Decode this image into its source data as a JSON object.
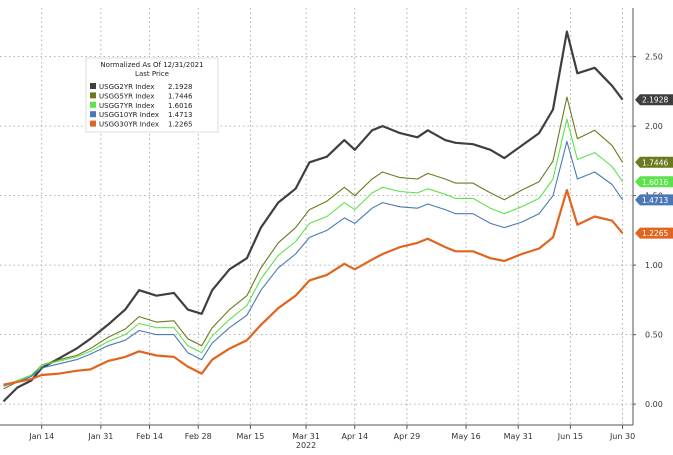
{
  "chart_data": {
    "type": "line",
    "legend": {
      "title_line1": "Normalized As Of 12/31/2021",
      "title_line2": "Last Price",
      "placement": "top-left"
    },
    "x_tick_labels": [
      "Jan 14",
      "Jan 31",
      "Feb 14",
      "Feb 28",
      "Mar 15",
      "Mar 31",
      "Apr 14",
      "Apr 29",
      "May 16",
      "May 31",
      "Jun 15",
      "Jun 30"
    ],
    "x_year_label": "2022",
    "y_tick_labels": [
      "0.00",
      "0.50",
      "1.00",
      "1.50",
      "2.00",
      "2.50"
    ],
    "y_axis_side": "right",
    "ylim": [
      -0.15,
      2.85
    ],
    "grid": true,
    "dates": [
      "2022-01-03",
      "2022-01-07",
      "2022-01-11",
      "2022-01-14",
      "2022-01-19",
      "2022-01-24",
      "2022-01-28",
      "2022-02-02",
      "2022-02-07",
      "2022-02-11",
      "2022-02-16",
      "2022-02-21",
      "2022-02-25",
      "2022-03-01",
      "2022-03-04",
      "2022-03-09",
      "2022-03-14",
      "2022-03-18",
      "2022-03-23",
      "2022-03-28",
      "2022-04-01",
      "2022-04-06",
      "2022-04-11",
      "2022-04-14",
      "2022-04-19",
      "2022-04-22",
      "2022-04-27",
      "2022-05-02",
      "2022-05-05",
      "2022-05-10",
      "2022-05-13",
      "2022-05-18",
      "2022-05-23",
      "2022-05-27",
      "2022-06-01",
      "2022-06-06",
      "2022-06-10",
      "2022-06-14",
      "2022-06-17",
      "2022-06-22",
      "2022-06-27",
      "2022-06-30"
    ],
    "series": [
      {
        "name": "USGG2YR Index",
        "last": "2.1928",
        "color": "#3f3f3f",
        "values": [
          0.02,
          0.12,
          0.17,
          0.26,
          0.33,
          0.4,
          0.47,
          0.57,
          0.68,
          0.82,
          0.78,
          0.8,
          0.68,
          0.65,
          0.82,
          0.97,
          1.05,
          1.27,
          1.45,
          1.55,
          1.74,
          1.78,
          1.9,
          1.83,
          1.97,
          2.0,
          1.95,
          1.92,
          1.97,
          1.9,
          1.88,
          1.87,
          1.83,
          1.77,
          1.86,
          1.95,
          2.12,
          2.68,
          2.38,
          2.42,
          2.29,
          2.19
        ]
      },
      {
        "name": "USGG5YR Index",
        "last": "1.7446",
        "color": "#6b7a1f",
        "values": [
          0.11,
          0.16,
          0.2,
          0.28,
          0.32,
          0.35,
          0.4,
          0.48,
          0.54,
          0.63,
          0.59,
          0.6,
          0.47,
          0.42,
          0.55,
          0.68,
          0.78,
          0.98,
          1.16,
          1.27,
          1.4,
          1.46,
          1.56,
          1.5,
          1.62,
          1.67,
          1.63,
          1.62,
          1.66,
          1.62,
          1.59,
          1.59,
          1.52,
          1.47,
          1.54,
          1.6,
          1.75,
          2.21,
          1.91,
          1.97,
          1.86,
          1.74
        ]
      },
      {
        "name": "USGG7YR Index",
        "last": "1.6016",
        "color": "#5ce34a",
        "values": [
          0.13,
          0.17,
          0.21,
          0.28,
          0.31,
          0.34,
          0.38,
          0.45,
          0.5,
          0.58,
          0.55,
          0.55,
          0.42,
          0.37,
          0.49,
          0.61,
          0.71,
          0.9,
          1.07,
          1.17,
          1.3,
          1.35,
          1.45,
          1.4,
          1.52,
          1.56,
          1.53,
          1.52,
          1.55,
          1.51,
          1.48,
          1.48,
          1.41,
          1.37,
          1.42,
          1.48,
          1.62,
          2.05,
          1.76,
          1.81,
          1.71,
          1.6
        ]
      },
      {
        "name": "USGG10YR Index",
        "last": "1.4713",
        "color": "#4a78b5",
        "values": [
          0.13,
          0.16,
          0.2,
          0.26,
          0.29,
          0.32,
          0.36,
          0.42,
          0.46,
          0.53,
          0.5,
          0.5,
          0.37,
          0.32,
          0.44,
          0.55,
          0.64,
          0.82,
          0.98,
          1.08,
          1.2,
          1.25,
          1.34,
          1.3,
          1.41,
          1.45,
          1.42,
          1.41,
          1.44,
          1.4,
          1.37,
          1.37,
          1.3,
          1.27,
          1.31,
          1.37,
          1.5,
          1.89,
          1.62,
          1.67,
          1.58,
          1.47
        ]
      },
      {
        "name": "USGG30YR Index",
        "last": "1.2265",
        "color": "#e0651e",
        "values": [
          0.14,
          0.16,
          0.18,
          0.21,
          0.22,
          0.24,
          0.25,
          0.31,
          0.34,
          0.38,
          0.35,
          0.34,
          0.27,
          0.22,
          0.32,
          0.4,
          0.46,
          0.57,
          0.69,
          0.78,
          0.89,
          0.93,
          1.01,
          0.97,
          1.04,
          1.08,
          1.13,
          1.16,
          1.19,
          1.13,
          1.1,
          1.1,
          1.05,
          1.03,
          1.08,
          1.12,
          1.2,
          1.54,
          1.29,
          1.35,
          1.32,
          1.23
        ]
      }
    ]
  }
}
